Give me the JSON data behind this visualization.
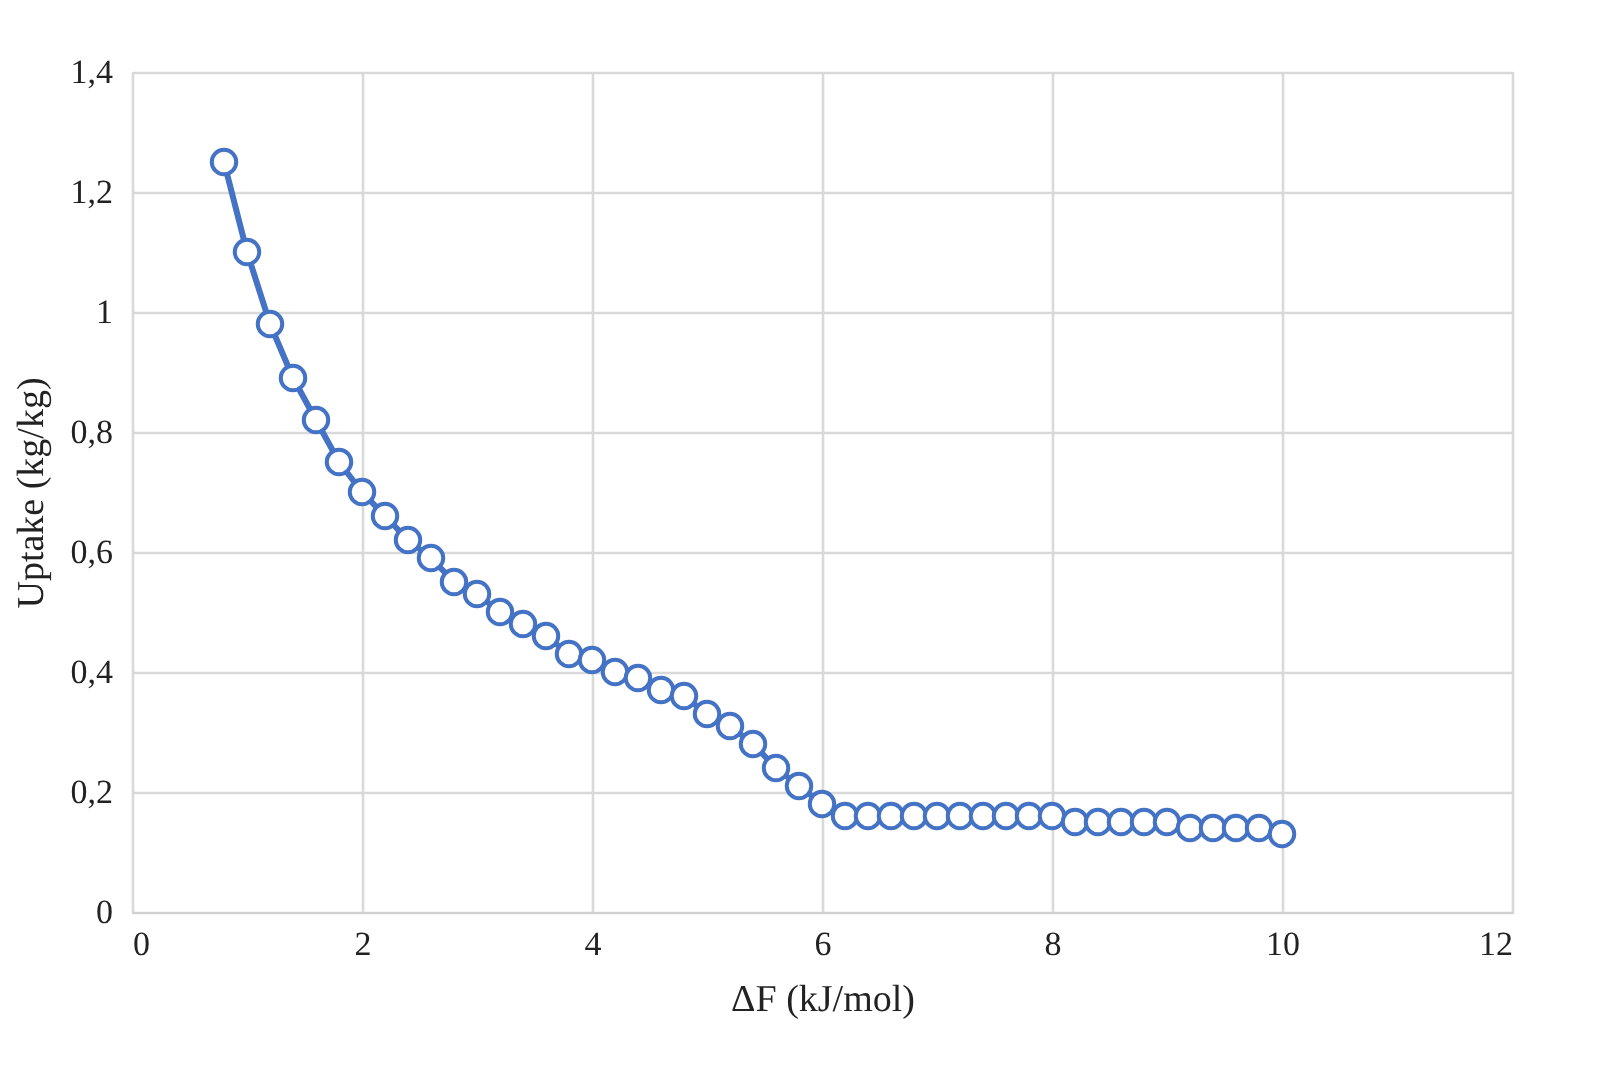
{
  "chart_data": {
    "type": "line",
    "xlabel": "ΔF (kJ/mol)",
    "ylabel": "Uptake (kg/kg)",
    "x": [
      0.8,
      1.0,
      1.2,
      1.4,
      1.6,
      1.8,
      2.0,
      2.2,
      2.4,
      2.6,
      2.8,
      3.0,
      3.2,
      3.4,
      3.6,
      3.8,
      4.0,
      4.2,
      4.4,
      4.6,
      4.8,
      5.0,
      5.2,
      5.4,
      5.6,
      5.8,
      6.0,
      6.2,
      6.4,
      6.6,
      6.8,
      7.0,
      7.2,
      7.4,
      7.6,
      7.8,
      8.0,
      8.2,
      8.4,
      8.6,
      8.8,
      9.0,
      9.2,
      9.4,
      9.6,
      9.8,
      10.0
    ],
    "series": [
      {
        "color": "#4472c4",
        "values": [
          1.25,
          1.1,
          0.98,
          0.89,
          0.82,
          0.75,
          0.7,
          0.66,
          0.62,
          0.59,
          0.55,
          0.53,
          0.5,
          0.48,
          0.46,
          0.43,
          0.42,
          0.4,
          0.39,
          0.37,
          0.36,
          0.33,
          0.31,
          0.28,
          0.24,
          0.21,
          0.18,
          0.16,
          0.16,
          0.16,
          0.16,
          0.16,
          0.16,
          0.16,
          0.16,
          0.16,
          0.16,
          0.15,
          0.15,
          0.15,
          0.15,
          0.15,
          0.14,
          0.14,
          0.14,
          0.14,
          0.13
        ]
      }
    ],
    "xlim": [
      0,
      12
    ],
    "xticks": [
      0,
      2,
      4,
      6,
      8,
      10,
      12
    ],
    "ylim": [
      0,
      1.4
    ],
    "yticks": [
      0,
      {
        "value": 0.2,
        "label": "0,2"
      },
      {
        "value": 0.4,
        "label": "0,4"
      },
      {
        "value": 0.6,
        "label": "0,6"
      },
      {
        "value": 0.8,
        "label": "0,8"
      },
      1,
      {
        "value": 1.2,
        "label": "1,2"
      },
      {
        "value": 1.4,
        "label": "1,4"
      }
    ],
    "grid": true,
    "marker": "circle",
    "line_style": "solid"
  }
}
